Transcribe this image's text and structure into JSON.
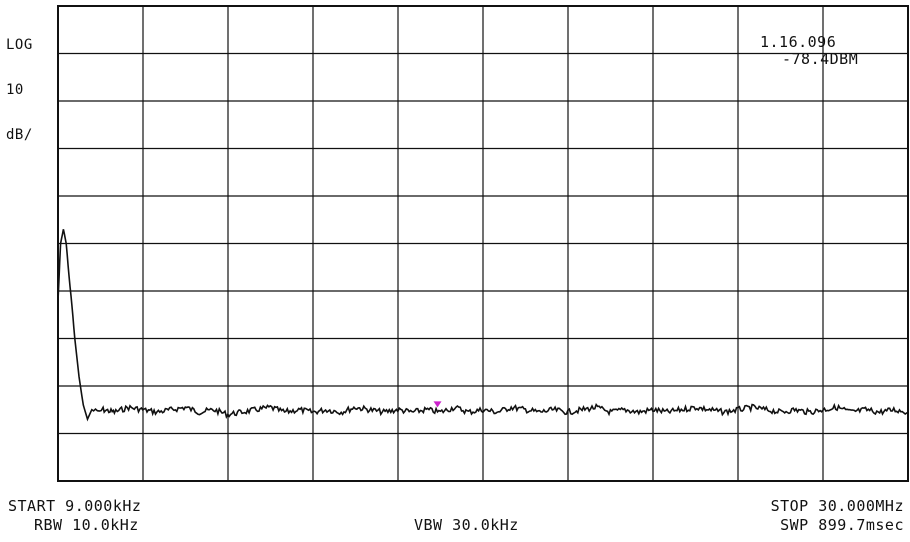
{
  "chart_data": {
    "type": "line",
    "scale_text": [
      "LOG",
      "10",
      "dB/"
    ],
    "grid": {
      "x_divisions": 10,
      "y_divisions": 10
    },
    "x": {
      "start_label": "START 9.000kHz",
      "stop_label": "STOP 30.000MHz",
      "start_mhz": 0.009,
      "stop_mhz": 30.0
    },
    "y": {
      "scale_db_per_div": 10,
      "divisions": 10
    },
    "marker": {
      "freq_text": "1.16.096",
      "level_text": "-78.4DBM",
      "x_mhz": 13.4,
      "y_div": 1.25
    },
    "settings": {
      "rbw_label": "RBW 10.0kHz",
      "vbw_label": "VBW 30.0kHz",
      "swp_label": "SWP 899.7msec"
    },
    "trace": {
      "x_mhz": [
        0.009,
        0.1,
        0.2,
        0.3,
        0.4,
        0.5,
        0.6,
        0.75,
        0.9,
        1.05,
        1.2,
        1.4,
        1.6,
        2.0,
        2.5,
        3.0,
        3.5,
        4.0,
        4.5,
        5.0,
        5.5,
        6.0,
        6.5,
        7.0,
        7.5,
        8.0,
        8.5,
        9.0,
        9.5,
        10.0,
        10.5,
        11.0,
        11.5,
        12.0,
        12.5,
        13.0,
        13.5,
        14.0,
        14.5,
        15.0,
        15.5,
        16.0,
        16.5,
        17.0,
        17.5,
        18.0,
        18.5,
        19.0,
        19.5,
        20.0,
        20.5,
        21.0,
        21.5,
        22.0,
        22.5,
        23.0,
        23.5,
        24.0,
        24.5,
        25.0,
        25.5,
        26.0,
        26.5,
        27.0,
        27.5,
        28.0,
        28.5,
        29.0,
        29.5,
        30.0
      ],
      "y_div": [
        6.2,
        5.0,
        4.7,
        5.0,
        5.7,
        6.3,
        7.0,
        7.8,
        8.4,
        8.7,
        8.5,
        8.55,
        8.5,
        8.55,
        8.45,
        8.5,
        8.55,
        8.5,
        8.45,
        8.55,
        8.5,
        8.6,
        8.55,
        8.5,
        8.45,
        8.55,
        8.5,
        8.55,
        8.5,
        8.55,
        8.45,
        8.5,
        8.55,
        8.5,
        8.55,
        8.5,
        8.55,
        8.45,
        8.55,
        8.5,
        8.55,
        8.45,
        8.5,
        8.55,
        8.5,
        8.55,
        8.5,
        8.45,
        8.55,
        8.5,
        8.55,
        8.5,
        8.55,
        8.5,
        8.45,
        8.5,
        8.55,
        8.5,
        8.45,
        8.5,
        8.55,
        8.5,
        8.55,
        8.5,
        8.45,
        8.55,
        8.5,
        8.55,
        8.5,
        8.55
      ]
    },
    "colors": {
      "grid": "#111111",
      "trace": "#111111",
      "marker": "#cc22cc"
    }
  }
}
